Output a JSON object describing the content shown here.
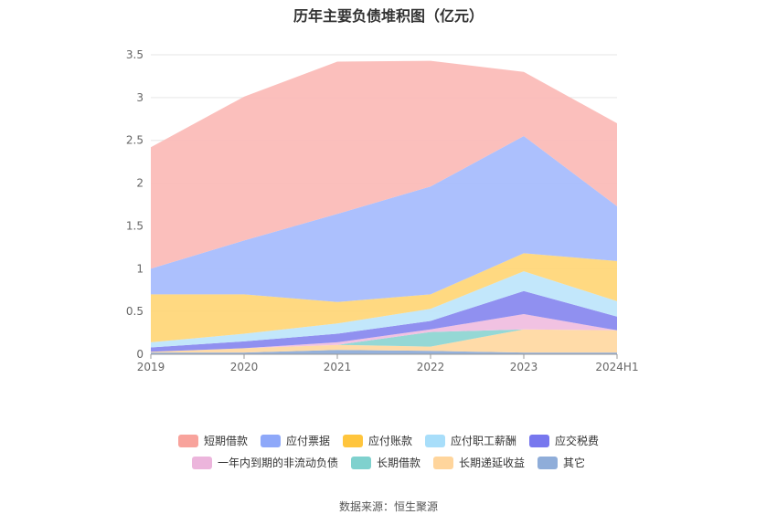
{
  "chart_data": {
    "type": "area",
    "stacked": true,
    "title": "历年主要负债堆积图（亿元）",
    "x": [
      "2019",
      "2020",
      "2021",
      "2022",
      "2023",
      "2024H1"
    ],
    "ylim": [
      0,
      3.5
    ],
    "yticks": [
      "0",
      "0.5",
      "1",
      "1.5",
      "2",
      "2.5",
      "3",
      "3.5"
    ],
    "grid": true,
    "legend_position": "bottom",
    "series": [
      {
        "name": "其它",
        "color": "#8fadd9",
        "values": [
          0.02,
          0.02,
          0.05,
          0.04,
          0.02,
          0.02
        ]
      },
      {
        "name": "长期递延收益",
        "color": "#ffd9a3",
        "values": [
          0.01,
          0.05,
          0.06,
          0.05,
          0.27,
          0.26
        ]
      },
      {
        "name": "长期借款",
        "color": "#8fd6d3",
        "values": [
          0.0,
          0.0,
          0.0,
          0.17,
          0.0,
          0.0
        ]
      },
      {
        "name": "一年内到期的非流动负债",
        "color": "#f0bfe0",
        "values": [
          0.0,
          0.0,
          0.03,
          0.03,
          0.18,
          0.0
        ]
      },
      {
        "name": "应交税费",
        "color": "#8a8aef",
        "values": [
          0.05,
          0.08,
          0.1,
          0.1,
          0.27,
          0.16
        ]
      },
      {
        "name": "应付职工薪酬",
        "color": "#bfe6fb",
        "values": [
          0.06,
          0.09,
          0.12,
          0.14,
          0.23,
          0.18
        ]
      },
      {
        "name": "应付账款",
        "color": "#ffd77a",
        "values": [
          0.56,
          0.46,
          0.25,
          0.17,
          0.21,
          0.47
        ]
      },
      {
        "name": "应付票据",
        "color": "#a8bdfd",
        "values": [
          0.3,
          0.63,
          1.03,
          1.26,
          1.37,
          0.64
        ]
      },
      {
        "name": "短期借款",
        "color": "#fbbcb8",
        "values": [
          1.42,
          1.68,
          1.78,
          1.47,
          0.75,
          0.97
        ]
      }
    ],
    "source": "数据来源：恒生聚源"
  },
  "legend": {
    "row1": [
      {
        "label": "短期借款",
        "color": "#f8a39c"
      },
      {
        "label": "应付票据",
        "color": "#8ea8f9"
      },
      {
        "label": "应付账款",
        "color": "#ffc53d"
      },
      {
        "label": "应付职工薪酬",
        "color": "#a8defa"
      },
      {
        "label": "应交税费",
        "color": "#7777ee"
      }
    ],
    "row2": [
      {
        "label": "一年内到期的非流动负债",
        "color": "#ecb5dc"
      },
      {
        "label": "长期借款",
        "color": "#7fd1ce"
      },
      {
        "label": "长期递延收益",
        "color": "#ffd59c"
      },
      {
        "label": "其它",
        "color": "#8fadd9"
      }
    ]
  }
}
